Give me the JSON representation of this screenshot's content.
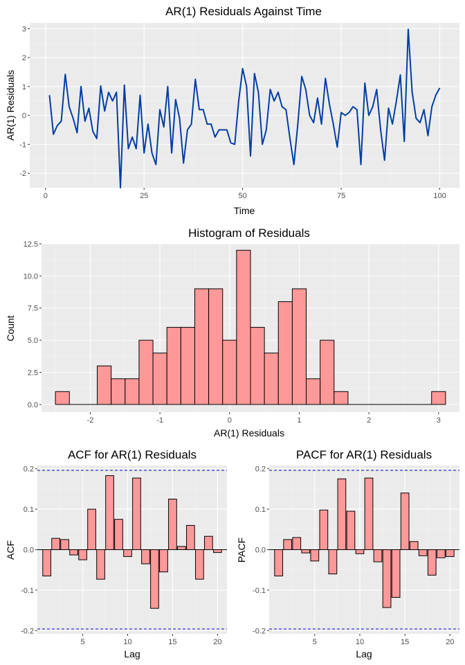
{
  "chart_data": [
    {
      "type": "line",
      "title": "AR(1) Residuals Against Time",
      "xlabel": "Time",
      "ylabel": "AR(1) Residuals",
      "xlim": [
        -4,
        105
      ],
      "ylim": [
        -2.5,
        3.2
      ],
      "xticks": [
        0,
        25,
        50,
        75,
        100
      ],
      "yticks": [
        -2,
        -1,
        0,
        1,
        2,
        3
      ],
      "line_color": "#003DA5",
      "x": [
        1,
        2,
        3,
        4,
        5,
        6,
        7,
        8,
        9,
        10,
        11,
        12,
        13,
        14,
        15,
        16,
        17,
        18,
        19,
        20,
        21,
        22,
        23,
        24,
        25,
        26,
        27,
        28,
        29,
        30,
        31,
        32,
        33,
        34,
        35,
        36,
        37,
        38,
        39,
        40,
        41,
        42,
        43,
        44,
        45,
        46,
        47,
        48,
        49,
        50,
        51,
        52,
        53,
        54,
        55,
        56,
        57,
        58,
        59,
        60,
        61,
        62,
        63,
        64,
        65,
        66,
        67,
        68,
        69,
        70,
        71,
        72,
        73,
        74,
        75,
        76,
        77,
        78,
        79,
        80,
        81,
        82,
        83,
        84,
        85,
        86,
        87,
        88,
        89,
        90,
        91,
        92,
        93,
        94,
        95,
        96,
        97,
        98,
        99,
        100
      ],
      "values": [
        0.7,
        -0.65,
        -0.35,
        -0.2,
        1.42,
        0.3,
        -0.1,
        -0.6,
        1.0,
        -0.2,
        0.25,
        -0.55,
        -0.8,
        1.02,
        0.15,
        0.8,
        0.5,
        0.8,
        -2.5,
        1.05,
        -1.15,
        -0.75,
        -1.15,
        0.7,
        -1.3,
        -0.3,
        -1.3,
        -1.7,
        0.2,
        -0.4,
        1.0,
        -1.3,
        0.55,
        -0.1,
        -1.65,
        -0.5,
        -0.3,
        1.25,
        0.2,
        0.2,
        -0.3,
        -0.3,
        -0.75,
        -0.5,
        -0.5,
        -0.5,
        -0.95,
        -1.0,
        0.5,
        1.62,
        1.0,
        -1.4,
        1.45,
        0.8,
        -1.0,
        -0.5,
        0.9,
        0.5,
        0.8,
        0.3,
        0.2,
        -0.8,
        -1.7,
        -0.3,
        1.35,
        0.9,
        0.0,
        -0.25,
        0.6,
        -0.3,
        1.28,
        0.4,
        -0.3,
        -1.1,
        0.1,
        0.0,
        0.1,
        0.3,
        0.2,
        -1.7,
        1.12,
        0.0,
        0.3,
        0.9,
        -0.5,
        -1.55,
        0.25,
        -0.3,
        0.5,
        1.4,
        -0.9,
        2.98,
        0.8,
        -0.1,
        -0.25,
        0.2,
        -0.7,
        0.3,
        0.7,
        0.95
      ]
    },
    {
      "type": "bar",
      "subtype": "histogram",
      "title": "Histogram of Residuals",
      "xlabel": "AR(1) Residuals",
      "ylabel": "Count",
      "bin_width": 0.2,
      "bin_centers": [
        -2.4,
        -2.2,
        -2.0,
        -1.8,
        -1.6,
        -1.4,
        -1.2,
        -1.0,
        -0.8,
        -0.6,
        -0.4,
        -0.2,
        0.0,
        0.2,
        0.4,
        0.6,
        0.8,
        1.0,
        1.2,
        1.4,
        1.6,
        1.8,
        2.0,
        2.2,
        2.4,
        2.6,
        2.8,
        3.0
      ],
      "values": [
        1,
        0,
        0,
        3,
        2,
        2,
        5,
        4,
        6,
        6,
        9,
        9,
        5,
        12,
        6,
        4,
        8,
        9,
        2,
        5,
        1,
        0,
        0,
        0,
        0,
        0,
        0,
        1
      ],
      "xlim": [
        -2.7,
        3.3
      ],
      "ylim": [
        -0.6,
        12.5
      ],
      "xticks": [
        -2,
        -1,
        0,
        1,
        2,
        3
      ],
      "yticks": [
        0.0,
        2.5,
        5.0,
        7.5,
        10.0,
        12.5
      ],
      "ytick_labels": [
        "0.0",
        "2.5",
        "5.0",
        "7.5",
        "10.0",
        "12.5"
      ],
      "bar_color": "#FF9999"
    },
    {
      "type": "bar",
      "title": "ACF for AR(1) Residuals",
      "xlabel": "Lag",
      "ylabel": "ACF",
      "lags": [
        1,
        2,
        3,
        4,
        5,
        6,
        7,
        8,
        9,
        10,
        11,
        12,
        13,
        14,
        15,
        16,
        17,
        18,
        19,
        20
      ],
      "values": [
        -0.065,
        0.028,
        0.025,
        -0.013,
        -0.025,
        0.1,
        -0.073,
        0.183,
        0.075,
        -0.017,
        0.177,
        -0.035,
        -0.145,
        -0.055,
        0.125,
        0.008,
        0.06,
        -0.073,
        0.033,
        -0.007
      ],
      "conf_limit": 0.196,
      "xlim": [
        -0.05,
        21.05
      ],
      "ylim": [
        -0.208,
        0.208
      ],
      "xticks": [
        5,
        10,
        15,
        20
      ],
      "yticks": [
        -0.2,
        -0.1,
        0.0,
        0.1,
        0.2
      ],
      "ytick_labels": [
        "-0.2",
        "-0.1",
        "0.0",
        "0.1",
        "0.2"
      ],
      "bar_color": "#FF9999",
      "conf_color": "#0000CC"
    },
    {
      "type": "bar",
      "title": "PACF for AR(1) Residuals",
      "xlabel": "Lag",
      "ylabel": "PACF",
      "lags": [
        1,
        2,
        3,
        4,
        5,
        6,
        7,
        8,
        9,
        10,
        11,
        12,
        13,
        14,
        15,
        16,
        17,
        18,
        19,
        20
      ],
      "values": [
        -0.065,
        0.025,
        0.03,
        -0.008,
        -0.028,
        0.098,
        -0.06,
        0.175,
        0.095,
        -0.01,
        0.177,
        -0.03,
        -0.143,
        -0.118,
        0.14,
        0.02,
        -0.015,
        -0.063,
        -0.02,
        -0.017
      ],
      "conf_limit": 0.196,
      "xlim": [
        -0.05,
        21.05
      ],
      "ylim": [
        -0.208,
        0.208
      ],
      "xticks": [
        5,
        10,
        15,
        20
      ],
      "yticks": [
        -0.2,
        -0.1,
        0.0,
        0.1,
        0.2
      ],
      "ytick_labels": [
        "-0.2",
        "-0.1",
        "0.0",
        "0.1",
        "0.2"
      ],
      "bar_color": "#FF9999",
      "conf_color": "#0000CC"
    }
  ]
}
